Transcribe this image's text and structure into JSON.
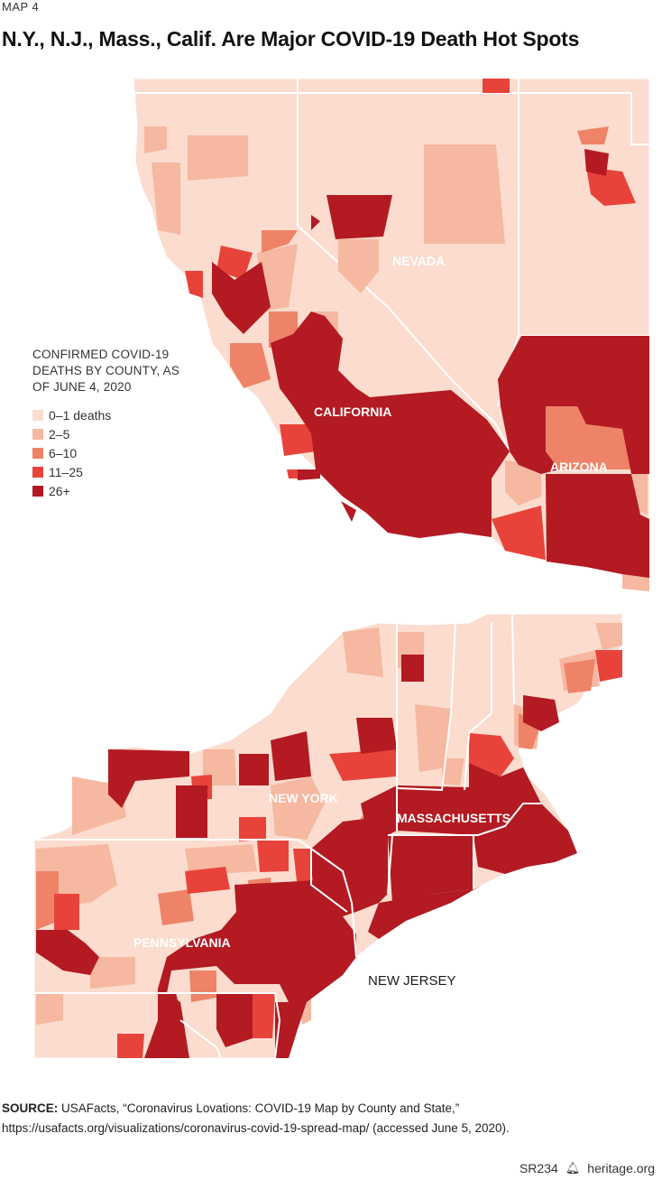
{
  "header": {
    "kicker": "MAP 4",
    "title": "N.Y., N.J., Mass., Calif. Are Major COVID-19 Death Hot Spots"
  },
  "legend": {
    "title": "CONFIRMED COVID-19 DEATHS BY COUNTY, AS OF JUNE 4, 2020",
    "items": [
      {
        "label": "0–1 deaths",
        "color": "#fbdccf"
      },
      {
        "label": "2–5",
        "color": "#f6b8a0"
      },
      {
        "label": "6–10",
        "color": "#ee8368"
      },
      {
        "label": "11–25",
        "color": "#e8433a"
      },
      {
        "label": "26+",
        "color": "#b31a22"
      }
    ]
  },
  "map_labels": {
    "nevada": "NEVADA",
    "california": "CALIFORNIA",
    "arizona": "ARIZONA",
    "new_york": "NEW YORK",
    "massachusetts": "MASSACHUSETTS",
    "pennsylvania": "PENNSYLVANIA",
    "new_jersey": "NEW JERSEY"
  },
  "source": {
    "label": "SOURCE:",
    "text": "USAFacts, “Coronavirus Lovations: COVID-19 Map by County and State,”",
    "url": "https://usafacts.org/visualizations/coronavirus-covid-19-spread-map/ (accessed June 5, 2020)."
  },
  "footer": {
    "report_id": "SR234",
    "site": "heritage.org"
  }
}
